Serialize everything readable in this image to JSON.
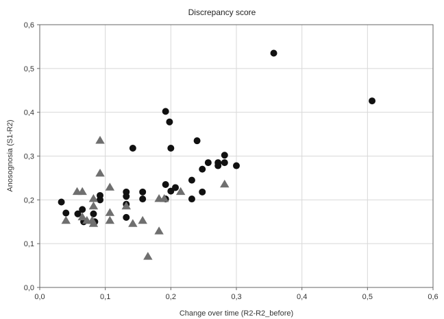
{
  "chart_data": {
    "type": "scatter",
    "title": "Discrepancy score",
    "xlabel": "Change over time (R2-R2_before)",
    "ylabel": "Anosognosia (S1-R2)",
    "xlim": [
      0.0,
      0.6
    ],
    "ylim": [
      0.0,
      0.6
    ],
    "xticks": [
      "0,0",
      "0,1",
      "0,2",
      "0,3",
      "0,4",
      "0,5",
      "0,6"
    ],
    "yticks": [
      "0,0",
      "0,1",
      "0,2",
      "0,3",
      "0,4",
      "0,5",
      "0,6"
    ],
    "grid": true,
    "legend": "none",
    "colors": {
      "circle_series": "#111111",
      "triangle_series": "#6f6f6f",
      "grid": "#d8d8d8",
      "axis": "#666666"
    },
    "series": [
      {
        "marker": "circle",
        "points": [
          [
            0.033,
            0.195
          ],
          [
            0.04,
            0.17
          ],
          [
            0.058,
            0.168
          ],
          [
            0.065,
            0.178
          ],
          [
            0.067,
            0.15
          ],
          [
            0.082,
            0.168
          ],
          [
            0.084,
            0.15
          ],
          [
            0.092,
            0.21
          ],
          [
            0.092,
            0.2
          ],
          [
            0.132,
            0.218
          ],
          [
            0.132,
            0.208
          ],
          [
            0.132,
            0.19
          ],
          [
            0.132,
            0.16
          ],
          [
            0.142,
            0.318
          ],
          [
            0.157,
            0.218
          ],
          [
            0.157,
            0.202
          ],
          [
            0.192,
            0.402
          ],
          [
            0.192,
            0.235
          ],
          [
            0.192,
            0.202
          ],
          [
            0.198,
            0.378
          ],
          [
            0.2,
            0.318
          ],
          [
            0.2,
            0.22
          ],
          [
            0.207,
            0.228
          ],
          [
            0.232,
            0.245
          ],
          [
            0.232,
            0.202
          ],
          [
            0.24,
            0.335
          ],
          [
            0.248,
            0.27
          ],
          [
            0.248,
            0.218
          ],
          [
            0.257,
            0.285
          ],
          [
            0.272,
            0.285
          ],
          [
            0.272,
            0.278
          ],
          [
            0.282,
            0.302
          ],
          [
            0.282,
            0.285
          ],
          [
            0.3,
            0.278
          ],
          [
            0.357,
            0.535
          ],
          [
            0.507,
            0.426
          ]
        ]
      },
      {
        "marker": "triangle",
        "points": [
          [
            0.04,
            0.152
          ],
          [
            0.057,
            0.218
          ],
          [
            0.065,
            0.218
          ],
          [
            0.065,
            0.16
          ],
          [
            0.072,
            0.152
          ],
          [
            0.08,
            0.152
          ],
          [
            0.082,
            0.185
          ],
          [
            0.082,
            0.202
          ],
          [
            0.082,
            0.145
          ],
          [
            0.092,
            0.335
          ],
          [
            0.092,
            0.26
          ],
          [
            0.107,
            0.228
          ],
          [
            0.107,
            0.17
          ],
          [
            0.107,
            0.152
          ],
          [
            0.132,
            0.185
          ],
          [
            0.142,
            0.145
          ],
          [
            0.157,
            0.152
          ],
          [
            0.165,
            0.07
          ],
          [
            0.182,
            0.128
          ],
          [
            0.182,
            0.202
          ],
          [
            0.19,
            0.202
          ],
          [
            0.215,
            0.218
          ],
          [
            0.282,
            0.235
          ]
        ]
      }
    ]
  }
}
